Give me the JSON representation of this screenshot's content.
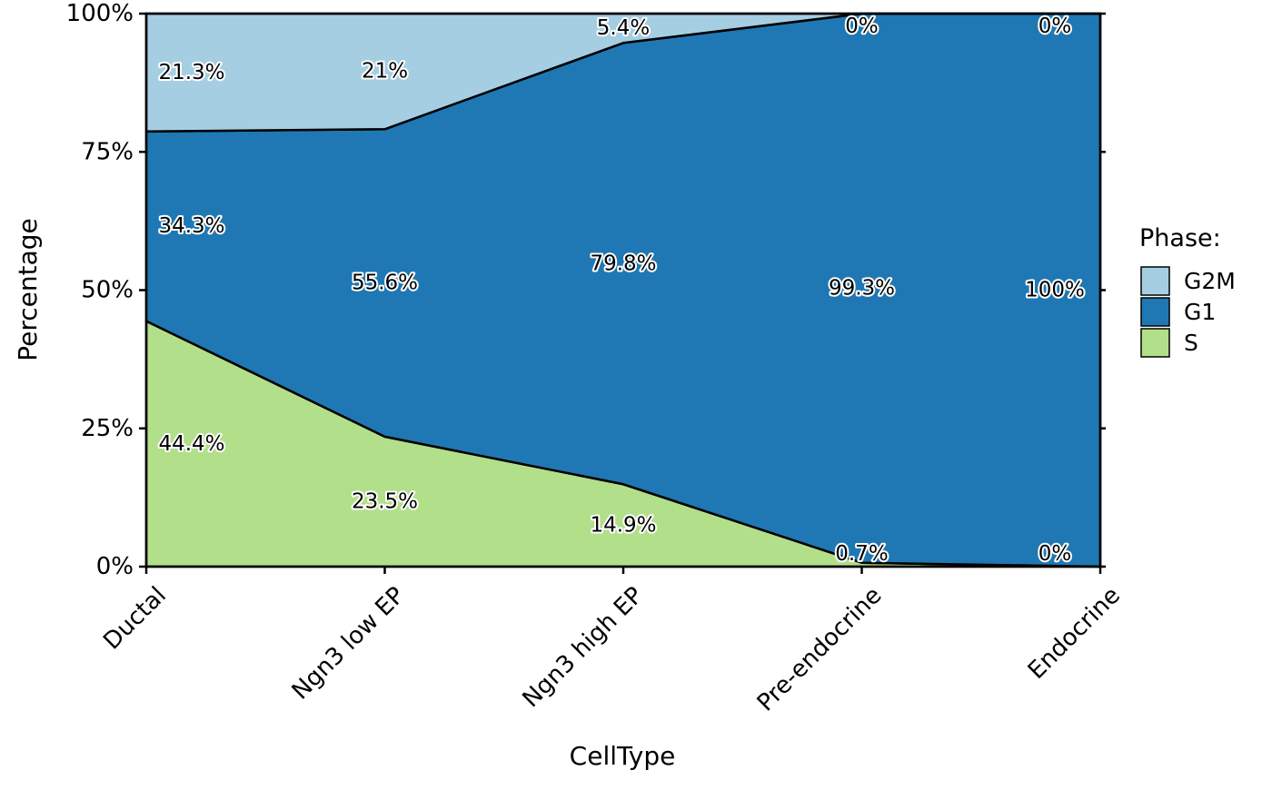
{
  "chart_data": {
    "type": "area",
    "stacked": "percent",
    "xlabel": "CellType",
    "ylabel": "Percentage",
    "categories": [
      "Ductal",
      "Ngn3 low EP",
      "Ngn3 high EP",
      "Pre-endocrine",
      "Endocrine"
    ],
    "ylim": [
      0,
      100
    ],
    "yticks": [
      0,
      25,
      50,
      75,
      100
    ],
    "ytick_labels": [
      "0%",
      "25%",
      "50%",
      "75%",
      "100%"
    ],
    "grid": false,
    "legend": {
      "title": "Phase:",
      "placement": "right"
    },
    "stack_order_bottom_to_top": [
      "S",
      "G1",
      "G2M"
    ],
    "series": [
      {
        "name": "G2M",
        "color": "#a6cee3",
        "values": [
          21.3,
          21.0,
          5.4,
          0.0,
          0.0
        ],
        "labels": [
          "21.3%",
          "21%",
          "5.4%",
          "0%",
          "0%"
        ]
      },
      {
        "name": "G1",
        "color": "#1f78b4",
        "values": [
          34.3,
          55.6,
          79.8,
          99.3,
          100.0
        ],
        "labels": [
          "34.3%",
          "55.6%",
          "79.8%",
          "99.3%",
          "100%"
        ]
      },
      {
        "name": "S",
        "color": "#b2df8a",
        "values": [
          44.4,
          23.5,
          14.9,
          0.7,
          0.0
        ],
        "labels": [
          "44.4%",
          "23.5%",
          "14.9%",
          "0.7%",
          "0%"
        ]
      }
    ]
  }
}
